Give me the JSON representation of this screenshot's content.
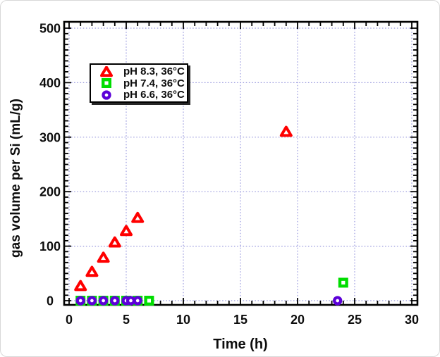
{
  "figure": {
    "background": "#ffffff",
    "border_color": "#d8d8d8"
  },
  "chart_data": {
    "type": "scatter",
    "title": "",
    "xlabel": "Time (h)",
    "ylabel": "gas volume per Si (mL/g)",
    "xlim": [
      0,
      30
    ],
    "ylim": [
      0,
      500
    ],
    "x_major_ticks": [
      0,
      5,
      10,
      15,
      20,
      25,
      30
    ],
    "x_minor_step": 1,
    "y_major_ticks": [
      0,
      100,
      200,
      300,
      400,
      500
    ],
    "y_minor_step": 10,
    "grid": {
      "show": true,
      "color": "#9a9ade",
      "style": "dotted",
      "on_major_ticks": true
    },
    "legend": {
      "position": "top-left",
      "border": "#000000",
      "background": "#ffffff"
    },
    "series": [
      {
        "name": "pH 8.3, 36°C",
        "marker": "triangle",
        "color": "#ff0000",
        "points": [
          [
            1,
            27
          ],
          [
            2,
            53
          ],
          [
            3,
            79
          ],
          [
            4,
            107
          ],
          [
            5,
            128
          ],
          [
            6,
            152
          ],
          [
            19,
            310
          ]
        ]
      },
      {
        "name": "pH 7.4, 36°C",
        "marker": "square",
        "color": "#00dd00",
        "points": [
          [
            1,
            0
          ],
          [
            2,
            0
          ],
          [
            3,
            0
          ],
          [
            4,
            0
          ],
          [
            5,
            0
          ],
          [
            6,
            0
          ],
          [
            7,
            0
          ],
          [
            24,
            33
          ]
        ]
      },
      {
        "name": "pH 6.6, 36°C",
        "marker": "circle",
        "color": "#5c00d8",
        "points": [
          [
            1,
            0
          ],
          [
            2,
            0
          ],
          [
            3,
            0
          ],
          [
            4,
            0
          ],
          [
            5,
            0
          ],
          [
            5.4,
            0
          ],
          [
            6,
            0
          ],
          [
            23.5,
            0
          ]
        ]
      }
    ]
  }
}
